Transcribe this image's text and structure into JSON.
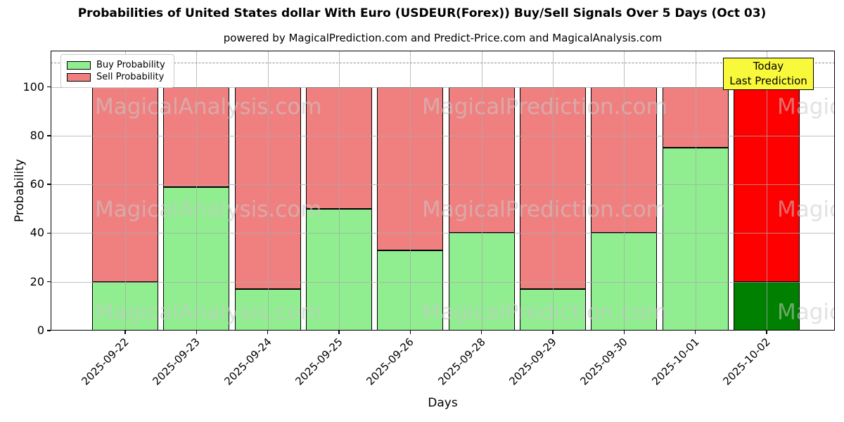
{
  "title": "Probabilities of United States dollar With Euro (USDEUR(Forex)) Buy/Sell Signals Over 5 Days (Oct 03)",
  "subtitle": "powered by MagicalPrediction.com and Predict-Price.com and MagicalAnalysis.com",
  "legend": {
    "buy_label": "Buy Probability",
    "sell_label": "Sell Probability"
  },
  "annotation": {
    "line1": "Today",
    "line2": "Last Prediction"
  },
  "axes": {
    "xlabel": "Days",
    "ylabel": "Probability",
    "yticks": [
      0,
      20,
      40,
      60,
      80,
      100
    ]
  },
  "watermarks": {
    "rows_text": [
      "MagicalAnalysis.com",
      "MagicalPrediction.com",
      "MagicalAnalysis.com"
    ]
  },
  "colors": {
    "buy": "#90EE90",
    "sell": "#F08080",
    "today_buy": "#008000",
    "today_sell": "#FF0000",
    "annotation_bg": "#F9F93C",
    "grid": "#AAAAAA",
    "dashed_line": "#8C8C8C"
  },
  "chart_data": {
    "type": "bar",
    "stacked": true,
    "title": "Probabilities of United States dollar With Euro (USDEUR(Forex)) Buy/Sell Signals Over 5 Days (Oct 03)",
    "subtitle": "powered by MagicalPrediction.com and Predict-Price.com and MagicalAnalysis.com",
    "xlabel": "Days",
    "ylabel": "Probability",
    "categories": [
      "2025-09-22",
      "2025-09-23",
      "2025-09-24",
      "2025-09-25",
      "2025-09-26",
      "2025-09-28",
      "2025-09-29",
      "2025-09-30",
      "2025-10-01",
      "2025-10-02"
    ],
    "series": [
      {
        "name": "Buy Probability",
        "color": "#90EE90",
        "values": [
          20,
          59,
          17,
          50,
          33,
          40,
          17,
          40,
          75,
          20
        ]
      },
      {
        "name": "Sell Probability",
        "color": "#F08080",
        "values": [
          80,
          41,
          83,
          50,
          67,
          60,
          83,
          60,
          25,
          80
        ]
      }
    ],
    "today_bar": {
      "category": "2025-10-02",
      "buy_color": "#008000",
      "sell_color": "#FF0000"
    },
    "ylim": [
      0,
      115
    ],
    "dashed_line_y": 110,
    "grid": true,
    "legend_position": "upper left"
  }
}
